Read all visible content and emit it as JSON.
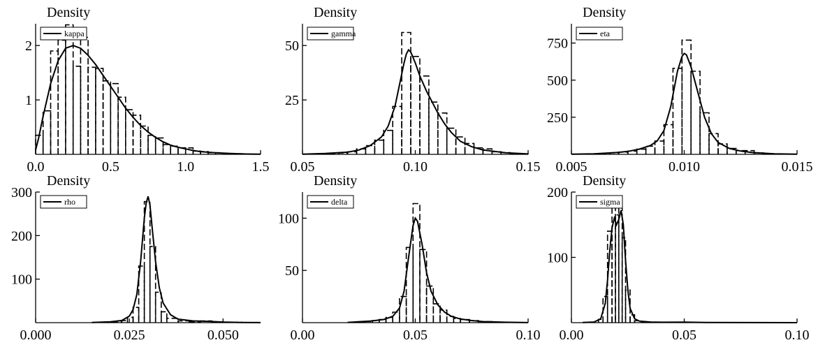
{
  "chart_data": [
    {
      "type": "histogram-density",
      "title": "Density",
      "legend": "kappa",
      "legend_position": "top-left",
      "xlim": [
        0,
        1.5
      ],
      "ylim": [
        0,
        2.4
      ],
      "xticks": [
        0,
        0.5,
        1.0,
        1.5
      ],
      "xtick_labels": [
        "0.0",
        "0.5",
        "1.0",
        "1.5"
      ],
      "yticks": [
        1,
        2
      ],
      "ytick_labels": [
        "1",
        "2"
      ],
      "bins": [
        {
          "x0": 0.0,
          "x1": 0.05,
          "value": 0.35
        },
        {
          "x0": 0.05,
          "x1": 0.1,
          "value": 0.8
        },
        {
          "x0": 0.1,
          "x1": 0.15,
          "value": 1.9
        },
        {
          "x0": 0.15,
          "x1": 0.2,
          "value": 2.1
        },
        {
          "x0": 0.2,
          "x1": 0.25,
          "value": 2.38
        },
        {
          "x0": 0.25,
          "x1": 0.3,
          "value": 1.62
        },
        {
          "x0": 0.3,
          "x1": 0.35,
          "value": 2.15
        },
        {
          "x0": 0.35,
          "x1": 0.4,
          "value": 1.6
        },
        {
          "x0": 0.4,
          "x1": 0.45,
          "value": 1.58
        },
        {
          "x0": 0.45,
          "x1": 0.5,
          "value": 1.35
        },
        {
          "x0": 0.5,
          "x1": 0.55,
          "value": 1.3
        },
        {
          "x0": 0.55,
          "x1": 0.6,
          "value": 1.05
        },
        {
          "x0": 0.6,
          "x1": 0.65,
          "value": 0.82
        },
        {
          "x0": 0.65,
          "x1": 0.7,
          "value": 0.72
        },
        {
          "x0": 0.7,
          "x1": 0.75,
          "value": 0.52
        },
        {
          "x0": 0.75,
          "x1": 0.8,
          "value": 0.35
        },
        {
          "x0": 0.8,
          "x1": 0.85,
          "value": 0.3
        },
        {
          "x0": 0.85,
          "x1": 0.9,
          "value": 0.18
        },
        {
          "x0": 0.9,
          "x1": 0.95,
          "value": 0.15
        },
        {
          "x0": 0.95,
          "x1": 1.0,
          "value": 0.12
        },
        {
          "x0": 1.0,
          "x1": 1.05,
          "value": 0.12
        },
        {
          "x0": 1.05,
          "x1": 1.1,
          "value": 0.06
        },
        {
          "x0": 1.1,
          "x1": 1.15,
          "value": 0.05
        },
        {
          "x0": 1.15,
          "x1": 1.2,
          "value": 0.03
        },
        {
          "x0": 1.2,
          "x1": 1.25,
          "value": 0.03
        },
        {
          "x0": 1.25,
          "x1": 1.3,
          "value": 0.02
        },
        {
          "x0": 1.3,
          "x1": 1.35,
          "value": 0.01
        },
        {
          "x0": 1.35,
          "x1": 1.4,
          "value": 0.01
        }
      ],
      "curve": {
        "x": [
          0.0,
          0.02,
          0.05,
          0.1,
          0.15,
          0.2,
          0.25,
          0.3,
          0.35,
          0.4,
          0.45,
          0.5,
          0.55,
          0.6,
          0.65,
          0.7,
          0.75,
          0.8,
          0.85,
          0.9,
          0.95,
          1.0,
          1.05,
          1.1,
          1.2,
          1.3,
          1.4,
          1.5
        ],
        "y": [
          0.08,
          0.3,
          0.7,
          1.3,
          1.72,
          1.95,
          2.0,
          1.95,
          1.82,
          1.65,
          1.45,
          1.25,
          1.05,
          0.85,
          0.68,
          0.53,
          0.41,
          0.31,
          0.23,
          0.17,
          0.13,
          0.1,
          0.07,
          0.05,
          0.03,
          0.015,
          0.007,
          0.003
        ]
      }
    },
    {
      "type": "histogram-density",
      "title": "Density",
      "legend": "gamma",
      "legend_position": "top-left",
      "xlim": [
        0.05,
        0.15
      ],
      "ylim": [
        0,
        60
      ],
      "xticks": [
        0.05,
        0.1,
        0.15
      ],
      "xtick_labels": [
        "0.05",
        "0.10",
        "0.15"
      ],
      "yticks": [
        25,
        50
      ],
      "ytick_labels": [
        "25",
        "50"
      ],
      "bins": [
        {
          "x0": 0.058,
          "x1": 0.062,
          "value": 0.3
        },
        {
          "x0": 0.062,
          "x1": 0.066,
          "value": 0.3
        },
        {
          "x0": 0.066,
          "x1": 0.07,
          "value": 0.6
        },
        {
          "x0": 0.07,
          "x1": 0.074,
          "value": 1.2
        },
        {
          "x0": 0.074,
          "x1": 0.078,
          "value": 2.5
        },
        {
          "x0": 0.078,
          "x1": 0.082,
          "value": 4.0
        },
        {
          "x0": 0.082,
          "x1": 0.086,
          "value": 6.5
        },
        {
          "x0": 0.086,
          "x1": 0.09,
          "value": 11.0
        },
        {
          "x0": 0.09,
          "x1": 0.094,
          "value": 22.0
        },
        {
          "x0": 0.094,
          "x1": 0.098,
          "value": 56.0
        },
        {
          "x0": 0.098,
          "x1": 0.102,
          "value": 45.0
        },
        {
          "x0": 0.102,
          "x1": 0.106,
          "value": 36.0
        },
        {
          "x0": 0.106,
          "x1": 0.11,
          "value": 24.0
        },
        {
          "x0": 0.11,
          "x1": 0.114,
          "value": 19.0
        },
        {
          "x0": 0.114,
          "x1": 0.118,
          "value": 12.0
        },
        {
          "x0": 0.118,
          "x1": 0.122,
          "value": 8.0
        },
        {
          "x0": 0.122,
          "x1": 0.126,
          "value": 5.0
        },
        {
          "x0": 0.126,
          "x1": 0.13,
          "value": 3.0
        },
        {
          "x0": 0.13,
          "x1": 0.134,
          "value": 2.5
        },
        {
          "x0": 0.134,
          "x1": 0.138,
          "value": 1.2
        },
        {
          "x0": 0.138,
          "x1": 0.142,
          "value": 0.8
        },
        {
          "x0": 0.142,
          "x1": 0.146,
          "value": 0.4
        },
        {
          "x0": 0.146,
          "x1": 0.15,
          "value": 0.2
        }
      ],
      "curve": {
        "x": [
          0.05,
          0.06,
          0.07,
          0.075,
          0.08,
          0.085,
          0.088,
          0.091,
          0.093,
          0.095,
          0.096,
          0.097,
          0.098,
          0.1,
          0.102,
          0.105,
          0.108,
          0.11,
          0.113,
          0.116,
          0.12,
          0.125,
          0.13,
          0.14,
          0.15
        ],
        "y": [
          0.1,
          0.4,
          1.0,
          2.0,
          4.0,
          8.0,
          13.0,
          22.0,
          32.0,
          42.0,
          46.0,
          48.0,
          47.0,
          42.0,
          36.0,
          29.0,
          23.0,
          19.0,
          14.0,
          10.0,
          6.0,
          3.5,
          2.0,
          0.7,
          0.2
        ]
      }
    },
    {
      "type": "histogram-density",
      "title": "Density",
      "legend": "eta",
      "legend_position": "top-left",
      "xlim": [
        0.005,
        0.015
      ],
      "ylim": [
        0,
        880
      ],
      "xticks": [
        0.005,
        0.01,
        0.015
      ],
      "xtick_labels": [
        "0.005",
        "0.010",
        "0.015"
      ],
      "yticks": [
        250,
        500,
        750
      ],
      "ytick_labels": [
        "250",
        "500",
        "750"
      ],
      "bins": [
        {
          "x0": 0.0063,
          "x1": 0.0067,
          "value": 5
        },
        {
          "x0": 0.0067,
          "x1": 0.0071,
          "value": 10
        },
        {
          "x0": 0.0071,
          "x1": 0.0075,
          "value": 15
        },
        {
          "x0": 0.0075,
          "x1": 0.0079,
          "value": 22
        },
        {
          "x0": 0.0079,
          "x1": 0.0083,
          "value": 35
        },
        {
          "x0": 0.0083,
          "x1": 0.0087,
          "value": 55
        },
        {
          "x0": 0.0087,
          "x1": 0.0091,
          "value": 90
        },
        {
          "x0": 0.0091,
          "x1": 0.0095,
          "value": 200
        },
        {
          "x0": 0.0095,
          "x1": 0.0099,
          "value": 580
        },
        {
          "x0": 0.0099,
          "x1": 0.0103,
          "value": 770
        },
        {
          "x0": 0.0103,
          "x1": 0.0107,
          "value": 560
        },
        {
          "x0": 0.0107,
          "x1": 0.0111,
          "value": 280
        },
        {
          "x0": 0.0111,
          "x1": 0.0115,
          "value": 140
        },
        {
          "x0": 0.0115,
          "x1": 0.0119,
          "value": 70
        },
        {
          "x0": 0.0119,
          "x1": 0.0123,
          "value": 40
        },
        {
          "x0": 0.0123,
          "x1": 0.0127,
          "value": 25
        },
        {
          "x0": 0.0127,
          "x1": 0.0131,
          "value": 25
        },
        {
          "x0": 0.0131,
          "x1": 0.0135,
          "value": 10
        },
        {
          "x0": 0.0135,
          "x1": 0.0139,
          "value": 5
        },
        {
          "x0": 0.0139,
          "x1": 0.0143,
          "value": 3
        }
      ],
      "curve": {
        "x": [
          0.005,
          0.006,
          0.007,
          0.0075,
          0.008,
          0.0085,
          0.0088,
          0.0091,
          0.0094,
          0.0097,
          0.0099,
          0.01,
          0.0101,
          0.0103,
          0.0106,
          0.0109,
          0.0112,
          0.0115,
          0.012,
          0.0125,
          0.013,
          0.014,
          0.015
        ],
        "y": [
          1,
          4,
          12,
          20,
          35,
          60,
          90,
          160,
          320,
          560,
          660,
          680,
          670,
          590,
          420,
          250,
          140,
          80,
          40,
          22,
          12,
          4,
          1
        ]
      }
    },
    {
      "type": "histogram-density",
      "title": "Density",
      "legend": "rho",
      "legend_position": "top-left",
      "xlim": [
        0.0,
        0.06
      ],
      "ylim": [
        0,
        300
      ],
      "xticks": [
        0.0,
        0.025,
        0.05
      ],
      "xtick_labels": [
        "0.000",
        "0.025",
        "0.050"
      ],
      "yticks": [
        100,
        200,
        300
      ],
      "ytick_labels": [
        "100",
        "200",
        "300"
      ],
      "bins": [
        {
          "x0": 0.018,
          "x1": 0.0205,
          "value": 1
        },
        {
          "x0": 0.0205,
          "x1": 0.023,
          "value": 2
        },
        {
          "x0": 0.023,
          "x1": 0.0245,
          "value": 5
        },
        {
          "x0": 0.0245,
          "x1": 0.026,
          "value": 12
        },
        {
          "x0": 0.026,
          "x1": 0.0275,
          "value": 35
        },
        {
          "x0": 0.0275,
          "x1": 0.029,
          "value": 130
        },
        {
          "x0": 0.029,
          "x1": 0.0305,
          "value": 278
        },
        {
          "x0": 0.0305,
          "x1": 0.032,
          "value": 175
        },
        {
          "x0": 0.032,
          "x1": 0.0335,
          "value": 70
        },
        {
          "x0": 0.0335,
          "x1": 0.035,
          "value": 25
        },
        {
          "x0": 0.035,
          "x1": 0.038,
          "value": 10
        },
        {
          "x0": 0.038,
          "x1": 0.041,
          "value": 4
        },
        {
          "x0": 0.041,
          "x1": 0.044,
          "value": 2
        },
        {
          "x0": 0.044,
          "x1": 0.047,
          "value": 4
        },
        {
          "x0": 0.047,
          "x1": 0.05,
          "value": 2
        },
        {
          "x0": 0.05,
          "x1": 0.055,
          "value": 1
        }
      ],
      "curve": {
        "x": [
          0.015,
          0.02,
          0.023,
          0.025,
          0.026,
          0.027,
          0.028,
          0.029,
          0.0295,
          0.03,
          0.0305,
          0.031,
          0.032,
          0.033,
          0.034,
          0.036,
          0.038,
          0.042,
          0.046,
          0.05,
          0.055,
          0.06
        ],
        "y": [
          0.5,
          2,
          5,
          15,
          30,
          65,
          140,
          240,
          275,
          290,
          270,
          225,
          140,
          80,
          45,
          18,
          8,
          4,
          3,
          1.5,
          0.5,
          0.2
        ]
      }
    },
    {
      "type": "histogram-density",
      "title": "Density",
      "legend": "delta",
      "legend_position": "top-left",
      "xlim": [
        0.0,
        0.1
      ],
      "ylim": [
        0,
        125
      ],
      "xticks": [
        0.0,
        0.05,
        0.1
      ],
      "xtick_labels": [
        "0.00",
        "0.05",
        "0.10"
      ],
      "yticks": [
        50,
        100
      ],
      "ytick_labels": [
        "50",
        "100"
      ],
      "bins": [
        {
          "x0": 0.025,
          "x1": 0.028,
          "value": 0.5
        },
        {
          "x0": 0.028,
          "x1": 0.031,
          "value": 1
        },
        {
          "x0": 0.031,
          "x1": 0.034,
          "value": 2
        },
        {
          "x0": 0.034,
          "x1": 0.037,
          "value": 3
        },
        {
          "x0": 0.037,
          "x1": 0.04,
          "value": 5
        },
        {
          "x0": 0.04,
          "x1": 0.043,
          "value": 10
        },
        {
          "x0": 0.043,
          "x1": 0.046,
          "value": 25
        },
        {
          "x0": 0.046,
          "x1": 0.049,
          "value": 72
        },
        {
          "x0": 0.049,
          "x1": 0.052,
          "value": 114
        },
        {
          "x0": 0.052,
          "x1": 0.055,
          "value": 70
        },
        {
          "x0": 0.055,
          "x1": 0.058,
          "value": 35
        },
        {
          "x0": 0.058,
          "x1": 0.061,
          "value": 18
        },
        {
          "x0": 0.061,
          "x1": 0.064,
          "value": 12
        },
        {
          "x0": 0.064,
          "x1": 0.067,
          "value": 6
        },
        {
          "x0": 0.067,
          "x1": 0.07,
          "value": 4
        },
        {
          "x0": 0.07,
          "x1": 0.074,
          "value": 3
        },
        {
          "x0": 0.074,
          "x1": 0.078,
          "value": 2
        },
        {
          "x0": 0.078,
          "x1": 0.085,
          "value": 1
        }
      ],
      "curve": {
        "x": [
          0.02,
          0.03,
          0.036,
          0.04,
          0.043,
          0.045,
          0.047,
          0.049,
          0.05,
          0.051,
          0.053,
          0.055,
          0.057,
          0.06,
          0.063,
          0.066,
          0.07,
          0.075,
          0.08,
          0.09,
          0.1
        ],
        "y": [
          0.3,
          1.5,
          3,
          6,
          14,
          30,
          62,
          93,
          100,
          97,
          75,
          48,
          30,
          17,
          10,
          6,
          3.5,
          2,
          1,
          0.4,
          0.1
        ]
      }
    },
    {
      "type": "histogram-density",
      "title": "Density",
      "legend": "sigma",
      "legend_position": "top-left",
      "xlim": [
        0.0,
        0.1
      ],
      "ylim": [
        0,
        200
      ],
      "xticks": [
        0.0,
        0.05,
        0.1
      ],
      "xtick_labels": [
        "0.00",
        "0.05",
        "0.10"
      ],
      "yticks": [
        100,
        200
      ],
      "ytick_labels": [
        "100",
        "200"
      ],
      "bins": [
        {
          "x0": 0.012,
          "x1": 0.014,
          "value": 5
        },
        {
          "x0": 0.014,
          "x1": 0.016,
          "value": 40
        },
        {
          "x0": 0.016,
          "x1": 0.018,
          "value": 140
        },
        {
          "x0": 0.018,
          "x1": 0.0195,
          "value": 178
        },
        {
          "x0": 0.0195,
          "x1": 0.021,
          "value": 165
        },
        {
          "x0": 0.021,
          "x1": 0.0225,
          "value": 178
        },
        {
          "x0": 0.0225,
          "x1": 0.024,
          "value": 130
        },
        {
          "x0": 0.024,
          "x1": 0.026,
          "value": 50
        },
        {
          "x0": 0.026,
          "x1": 0.028,
          "value": 12
        },
        {
          "x0": 0.028,
          "x1": 0.031,
          "value": 3
        },
        {
          "x0": 0.031,
          "x1": 0.035,
          "value": 1
        }
      ],
      "curve": {
        "x": [
          0.005,
          0.01,
          0.013,
          0.015,
          0.016,
          0.017,
          0.018,
          0.019,
          0.02,
          0.021,
          0.022,
          0.023,
          0.024,
          0.025,
          0.026,
          0.028,
          0.03,
          0.035,
          0.04,
          0.05,
          0.06,
          0.1
        ],
        "y": [
          0.2,
          1,
          6,
          30,
          65,
          110,
          145,
          160,
          150,
          158,
          172,
          150,
          95,
          50,
          22,
          6,
          2.5,
          1,
          0.6,
          0.8,
          0.3,
          0.05
        ]
      }
    }
  ]
}
